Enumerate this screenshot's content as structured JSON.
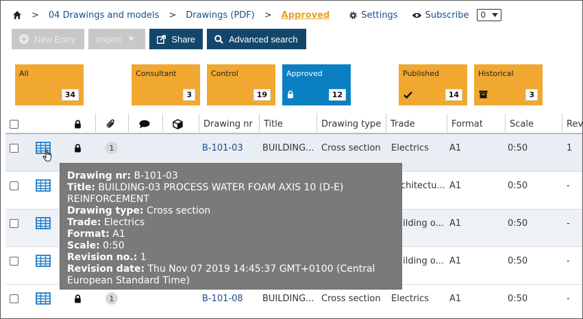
{
  "breadcrumb": {
    "items": [
      "04 Drawings and models",
      "Drawings (PDF)"
    ],
    "current": "Approved",
    "separator": ">"
  },
  "actions": {
    "settings_label": "Settings",
    "subscribe_label": "Subscribe",
    "subscribe_value": "0"
  },
  "toolbar": {
    "new_entry": "New Entry",
    "import": "Import",
    "share": "Share",
    "advanced_search": "Advanced search"
  },
  "tiles": [
    {
      "label": "All",
      "count": "34"
    },
    {
      "label": "Consultant",
      "count": "3"
    },
    {
      "label": "Control",
      "count": "19"
    },
    {
      "label": "Approved",
      "count": "12"
    },
    {
      "label": "Published",
      "count": "14"
    },
    {
      "label": "Historical",
      "count": "3"
    }
  ],
  "columns": {
    "drawing_nr": "Drawing nr",
    "title": "Title",
    "drawing_type": "Drawing type",
    "trade": "Trade",
    "format": "Format",
    "scale": "Scale",
    "revision": "Rev"
  },
  "rows": [
    {
      "attachments": "1",
      "drawing_nr": "B-101-03",
      "title": "BUILDING...",
      "drawing_type": "Cross section",
      "trade": "Electrics",
      "format": "A1",
      "scale": "0:50",
      "revision": "1"
    },
    {
      "attachments": "",
      "drawing_nr": "",
      "title": "",
      "drawing_type": "",
      "trade": "Architectu...",
      "format": "A1",
      "scale": "0:50",
      "revision": "-"
    },
    {
      "attachments": "",
      "drawing_nr": "",
      "title": "",
      "drawing_type": "",
      "trade": "Building o...",
      "format": "A1",
      "scale": "0:50",
      "revision": "-"
    },
    {
      "attachments": "",
      "drawing_nr": "",
      "title": "",
      "drawing_type": "",
      "trade": "Building o...",
      "format": "A1",
      "scale": "0:50",
      "revision": "-"
    },
    {
      "attachments": "1",
      "drawing_nr": "B-101-08",
      "title": "BUILDING...",
      "drawing_type": "Cross section",
      "trade": "Electrics",
      "format": "A1",
      "scale": "0:50",
      "revision": "-"
    }
  ],
  "tooltip": {
    "l1k": "Drawing nr:",
    "l1v": " B-101-03",
    "l2k": "Title:",
    "l2v": " BUILDING-03 PROCESS WATER FOAM AXIS 10 (D-E) REINFORCEMENT",
    "l3k": "Drawing type:",
    "l3v": " Cross section",
    "l4k": "Trade:",
    "l4v": " Electrics",
    "l5k": "Format:",
    "l5v": " A1",
    "l6k": "Scale:",
    "l6v": " 0:50",
    "l7k": "Revision no.:",
    "l7v": " 1",
    "l8k": "Revision date:",
    "l8v": " Thu Nov 07 2019 14:45:37 GMT+0100 (Central European Standard Time)"
  },
  "colors": {
    "accent": "#f0a830",
    "active": "#0a7fc2",
    "primary": "#12476b",
    "link": "#1a4d8a"
  }
}
